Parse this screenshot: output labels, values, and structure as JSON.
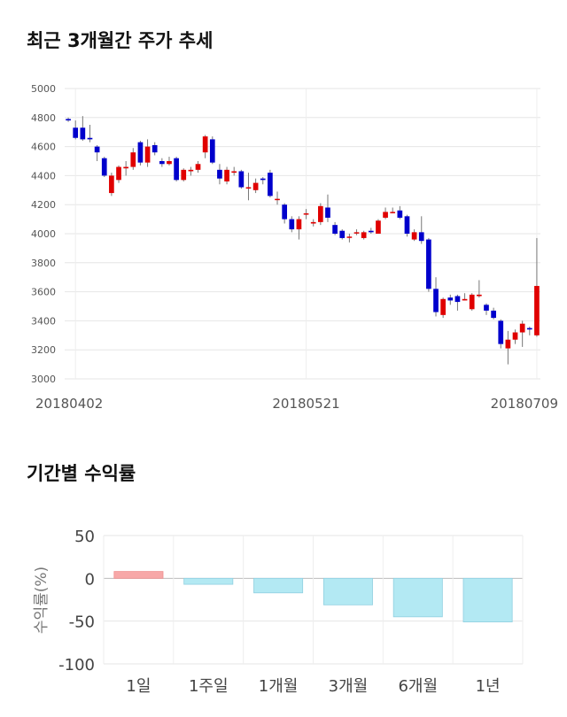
{
  "titles": {
    "stock_trend": "최근 3개월간 주가 추세",
    "period_returns": "기간별 수익률"
  },
  "colors": {
    "up": "#e00000",
    "down": "#0000cc",
    "positive_bar": "#f7a8a8",
    "negative_bar": "#b3e9f3"
  },
  "chart_data": [
    {
      "type": "candlestick",
      "title": "최근 3개월간 주가 추세",
      "ylim": [
        3000,
        5000
      ],
      "y_ticks": [
        "3000",
        "3200",
        "3400",
        "3600",
        "3800",
        "4000",
        "4200",
        "4400",
        "4600",
        "4800",
        "5000"
      ],
      "x_tick_labels": [
        {
          "label": "20180402",
          "index": 1
        },
        {
          "label": "20180521",
          "index": 33
        },
        {
          "label": "20180709",
          "index": 65
        }
      ],
      "candles": [
        [
          4790,
          4780,
          4800,
          4770
        ],
        [
          4730,
          4660,
          4780,
          4650
        ],
        [
          4730,
          4650,
          4810,
          4640
        ],
        [
          4660,
          4650,
          4750,
          4630
        ],
        [
          4600,
          4560,
          4610,
          4500
        ],
        [
          4520,
          4400,
          4530,
          4390
        ],
        [
          4280,
          4400,
          4420,
          4260
        ],
        [
          4370,
          4460,
          4470,
          4350
        ],
        [
          4450,
          4460,
          4500,
          4400
        ],
        [
          4460,
          4560,
          4590,
          4440
        ],
        [
          4630,
          4490,
          4640,
          4470
        ],
        [
          4490,
          4600,
          4650,
          4460
        ],
        [
          4610,
          4560,
          4630,
          4540
        ],
        [
          4500,
          4480,
          4520,
          4460
        ],
        [
          4480,
          4500,
          4530,
          4470
        ],
        [
          4520,
          4370,
          4530,
          4360
        ],
        [
          4370,
          4440,
          4450,
          4360
        ],
        [
          4430,
          4440,
          4460,
          4400
        ],
        [
          4440,
          4480,
          4500,
          4420
        ],
        [
          4560,
          4670,
          4680,
          4520
        ],
        [
          4650,
          4490,
          4670,
          4480
        ],
        [
          4440,
          4380,
          4480,
          4340
        ],
        [
          4360,
          4440,
          4460,
          4340
        ],
        [
          4420,
          4430,
          4460,
          4400
        ],
        [
          4430,
          4320,
          4440,
          4310
        ],
        [
          4320,
          4320,
          4420,
          4230
        ],
        [
          4300,
          4350,
          4380,
          4280
        ],
        [
          4380,
          4370,
          4390,
          4340
        ],
        [
          4420,
          4260,
          4440,
          4250
        ],
        [
          4240,
          4240,
          4290,
          4200
        ],
        [
          4200,
          4100,
          4210,
          4070
        ],
        [
          4100,
          4030,
          4120,
          4010
        ],
        [
          4030,
          4100,
          4120,
          3960
        ],
        [
          4140,
          4140,
          4170,
          4100
        ],
        [
          4070,
          4080,
          4100,
          4050
        ],
        [
          4080,
          4190,
          4210,
          4060
        ],
        [
          4180,
          4110,
          4270,
          4080
        ],
        [
          4060,
          4000,
          4080,
          3990
        ],
        [
          4020,
          3970,
          4030,
          3960
        ],
        [
          3980,
          3980,
          4000,
          3940
        ],
        [
          4010,
          4010,
          4030,
          3990
        ],
        [
          3970,
          4010,
          4020,
          3960
        ],
        [
          4020,
          4010,
          4040,
          4000
        ],
        [
          4000,
          4090,
          4100,
          4000
        ],
        [
          4110,
          4150,
          4180,
          4100
        ],
        [
          4150,
          4150,
          4180,
          4140
        ],
        [
          4160,
          4110,
          4190,
          4100
        ],
        [
          4120,
          4000,
          4130,
          3980
        ],
        [
          3960,
          4010,
          4030,
          3950
        ],
        [
          4010,
          3950,
          4120,
          3930
        ],
        [
          3960,
          3620,
          3970,
          3600
        ],
        [
          3620,
          3460,
          3700,
          3430
        ],
        [
          3440,
          3550,
          3560,
          3420
        ],
        [
          3560,
          3540,
          3580,
          3510
        ],
        [
          3570,
          3530,
          3580,
          3470
        ],
        [
          3540,
          3550,
          3590,
          3540
        ],
        [
          3480,
          3580,
          3590,
          3470
        ],
        [
          3570,
          3580,
          3680,
          3560
        ],
        [
          3510,
          3470,
          3520,
          3440
        ],
        [
          3470,
          3420,
          3490,
          3410
        ],
        [
          3400,
          3240,
          3410,
          3210
        ],
        [
          3210,
          3270,
          3330,
          3100
        ],
        [
          3270,
          3320,
          3340,
          3240
        ],
        [
          3320,
          3380,
          3400,
          3220
        ],
        [
          3350,
          3340,
          3360,
          3300
        ],
        [
          3300,
          3640,
          3970,
          3290
        ]
      ]
    },
    {
      "type": "bar",
      "title": "기간별 수익률",
      "ylabel": "수익률(%)",
      "ylim": [
        -100,
        50
      ],
      "y_ticks": [
        "50",
        "0",
        "-50",
        "-100"
      ],
      "categories": [
        "1일",
        "1주일",
        "1개월",
        "3개월",
        "6개월",
        "1년"
      ],
      "values": [
        8,
        -7,
        -17,
        -31,
        -45,
        -51
      ]
    }
  ]
}
